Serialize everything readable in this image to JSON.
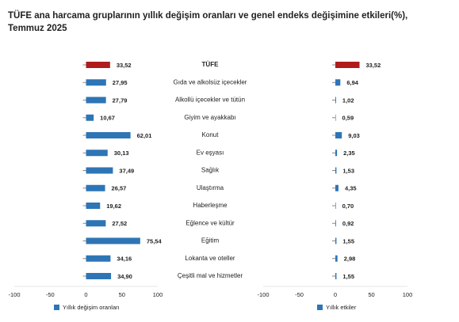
{
  "chart_data": [
    {
      "type": "hbar",
      "title": "TÜFE ana harcama gruplarının yıllık değişim oranları ve genel endeks değişimine etkileri(%), Temmuz 2025",
      "categories": [
        "TÜFE",
        "Gıda ve alkolsüz içecekler",
        "Alkollü içecekler ve tütün",
        "Giyim ve ayakkabı",
        "Konut",
        "Ev eşyası",
        "Sağlık",
        "Ulaştırma",
        "Haberleşme",
        "Eğlence ve kültür",
        "Eğitim",
        "Lokanta ve oteller",
        "Çeşitli mal ve hizmetler"
      ],
      "series": [
        {
          "name": "Yıllık değişim oranları",
          "color": "#2e75b6",
          "colors": [
            "#b01c1c",
            "#2e75b6",
            "#2e75b6",
            "#2e75b6",
            "#2e75b6",
            "#2e75b6",
            "#2e75b6",
            "#2e75b6",
            "#2e75b6",
            "#2e75b6",
            "#2e75b6",
            "#2e75b6",
            "#2e75b6"
          ],
          "values": [
            33.52,
            27.95,
            27.79,
            10.67,
            62.01,
            30.13,
            37.49,
            26.57,
            19.62,
            27.52,
            75.54,
            34.16,
            34.9
          ],
          "value_labels": [
            "33,52",
            "27,95",
            "27,79",
            "10,67",
            "62,01",
            "30,13",
            "37,49",
            "26,57",
            "19,62",
            "27,52",
            "75,54",
            "34,16",
            "34,90"
          ]
        }
      ],
      "xlim": [
        -100,
        100
      ],
      "xticks": [
        -100,
        -50,
        0,
        50,
        100
      ]
    },
    {
      "type": "hbar",
      "series": [
        {
          "name": "Yıllık etkiler",
          "color": "#2e75b6",
          "colors": [
            "#b01c1c",
            "#2e75b6",
            "#2e75b6",
            "#2e75b6",
            "#2e75b6",
            "#2e75b6",
            "#2e75b6",
            "#2e75b6",
            "#2e75b6",
            "#2e75b6",
            "#2e75b6",
            "#2e75b6",
            "#2e75b6"
          ],
          "values": [
            33.52,
            6.94,
            1.02,
            0.59,
            9.03,
            2.35,
            1.53,
            4.35,
            0.7,
            0.92,
            1.55,
            2.98,
            1.55
          ],
          "value_labels": [
            "33,52",
            "6,94",
            "1,02",
            "0,59",
            "9,03",
            "2,35",
            "1,53",
            "4,35",
            "0,70",
            "0,92",
            "1,55",
            "2,98",
            "1,55"
          ]
        }
      ],
      "xlim": [
        -100,
        100
      ],
      "xticks": [
        -100,
        -50,
        0,
        50,
        100
      ]
    }
  ]
}
